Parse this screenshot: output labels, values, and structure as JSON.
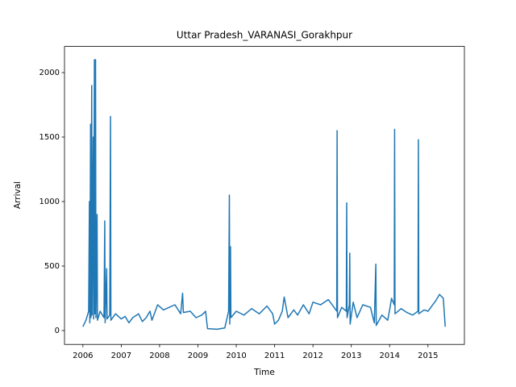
{
  "chart_data": {
    "type": "line",
    "title": "Uttar Pradesh_VARANASI_Gorakhpur",
    "xlabel": "Time",
    "ylabel": "Arrival",
    "x": [
      2006.0,
      2006.08,
      2006.15,
      2006.17,
      2006.18,
      2006.2,
      2006.21,
      2006.23,
      2006.24,
      2006.27,
      2006.28,
      2006.3,
      2006.31,
      2006.33,
      2006.34,
      2006.37,
      2006.38,
      2006.45,
      2006.55,
      2006.57,
      2006.58,
      2006.62,
      2006.63,
      2006.7,
      2006.72,
      2006.73,
      2006.85,
      2007.0,
      2007.1,
      2007.2,
      2007.3,
      2007.45,
      2007.55,
      2007.65,
      2007.75,
      2007.8,
      2007.95,
      2008.1,
      2008.25,
      2008.4,
      2008.55,
      2008.6,
      2008.62,
      2008.8,
      2008.95,
      2009.1,
      2009.2,
      2009.25,
      2009.5,
      2009.7,
      2009.8,
      2009.82,
      2009.83,
      2009.85,
      2009.86,
      2010.0,
      2010.2,
      2010.4,
      2010.6,
      2010.8,
      2010.95,
      2011.0,
      2011.1,
      2011.2,
      2011.25,
      2011.35,
      2011.5,
      2011.6,
      2011.75,
      2011.9,
      2012.0,
      2012.2,
      2012.4,
      2012.55,
      2012.62,
      2012.63,
      2012.64,
      2012.75,
      2012.87,
      2012.88,
      2012.89,
      2012.95,
      2012.96,
      2012.97,
      2013.05,
      2013.15,
      2013.3,
      2013.5,
      2013.6,
      2013.64,
      2013.65,
      2013.8,
      2013.95,
      2014.0,
      2014.05,
      2014.12,
      2014.13,
      2014.14,
      2014.3,
      2014.45,
      2014.6,
      2014.74,
      2014.75,
      2014.76,
      2014.9,
      2015.0,
      2015.1,
      2015.2,
      2015.3,
      2015.4,
      2015.45
    ],
    "series": [
      {
        "color": "#1f77b4",
        "values": [
          30,
          80,
          150,
          1000,
          60,
          1600,
          100,
          1900,
          120,
          1500,
          90,
          2100,
          130,
          2100,
          100,
          900,
          80,
          150,
          100,
          850,
          60,
          480,
          90,
          120,
          1660,
          80,
          130,
          90,
          110,
          60,
          100,
          130,
          70,
          100,
          150,
          80,
          200,
          160,
          180,
          200,
          130,
          290,
          140,
          150,
          100,
          120,
          150,
          15,
          10,
          20,
          150,
          1050,
          50,
          650,
          100,
          150,
          120,
          170,
          130,
          190,
          130,
          50,
          80,
          150,
          260,
          100,
          160,
          120,
          200,
          130,
          220,
          200,
          240,
          180,
          150,
          1550,
          100,
          180,
          150,
          990,
          100,
          200,
          600,
          50,
          220,
          100,
          200,
          180,
          60,
          515,
          40,
          120,
          80,
          160,
          250,
          200,
          1560,
          130,
          170,
          140,
          120,
          150,
          1480,
          130,
          160,
          150,
          190,
          230,
          280,
          250,
          30
        ]
      }
    ],
    "xlim": [
      2005.52,
      2015.95
    ],
    "ylim": [
      -107.5,
      2202.5
    ],
    "xticks": [
      2006,
      2007,
      2008,
      2009,
      2010,
      2011,
      2012,
      2013,
      2014,
      2015
    ],
    "yticks": [
      0,
      500,
      1000,
      1500,
      2000
    ]
  }
}
